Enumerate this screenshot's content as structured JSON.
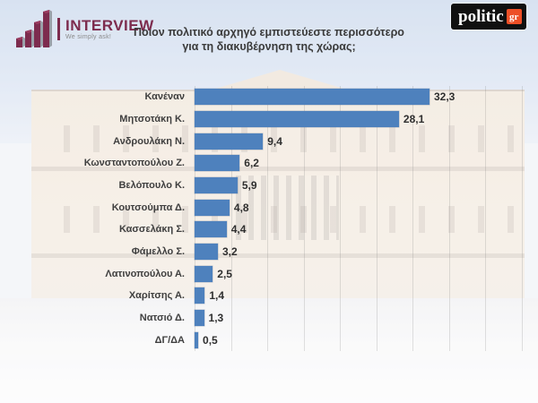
{
  "header": {
    "interview_logo": {
      "name": "INTERVIEW",
      "tagline": "We simply ask!"
    },
    "politic_logo": {
      "text": "politic",
      "badge": "gr"
    }
  },
  "title": {
    "line1": "Ποιον πολιτικό αρχηγό εμπιστεύεστε περισσότερο",
    "line2": "για τη διακυβέρνηση της χώρας;"
  },
  "chart_data": {
    "type": "bar",
    "orientation": "horizontal",
    "title": "Ποιον πολιτικό αρχηγό εμπιστεύεστε περισσότερο για τη διακυβέρνηση της χώρας;",
    "categories": [
      "Κανέναν",
      "Μητσοτάκη Κ.",
      "Ανδρουλάκη Ν.",
      "Κωνσταντοπούλου Ζ.",
      "Βελόπουλο Κ.",
      "Κουτσούμπα Δ.",
      "Κασσελάκη Σ.",
      "Φάμελλο Σ.",
      "Λατινοπούλου Α.",
      "Χαρίτσης Α.",
      "Νατσιό Δ.",
      "ΔΓ/ΔΑ"
    ],
    "values": [
      32.3,
      28.1,
      9.4,
      6.2,
      5.9,
      4.8,
      4.4,
      3.2,
      2.5,
      1.4,
      1.3,
      0.5
    ],
    "value_labels": [
      "32,3",
      "28,1",
      "9,4",
      "6,2",
      "5,9",
      "4,8",
      "4,4",
      "3,2",
      "2,5",
      "1,4",
      "1,3",
      "0,5"
    ],
    "xlabel": "",
    "ylabel": "",
    "xlim": [
      0,
      45
    ],
    "gridline_step": 5,
    "grid": true,
    "legend": null,
    "bar_color": "#4e81bd"
  },
  "colors": {
    "bar": "#4e81bd",
    "interview_maroon": "#7d2c4e",
    "politic_black": "#101010",
    "politic_orange": "#ed4f26",
    "title_text": "#3a3a3a",
    "label_text": "#3f3f3f",
    "value_text": "#2f2f2f"
  }
}
